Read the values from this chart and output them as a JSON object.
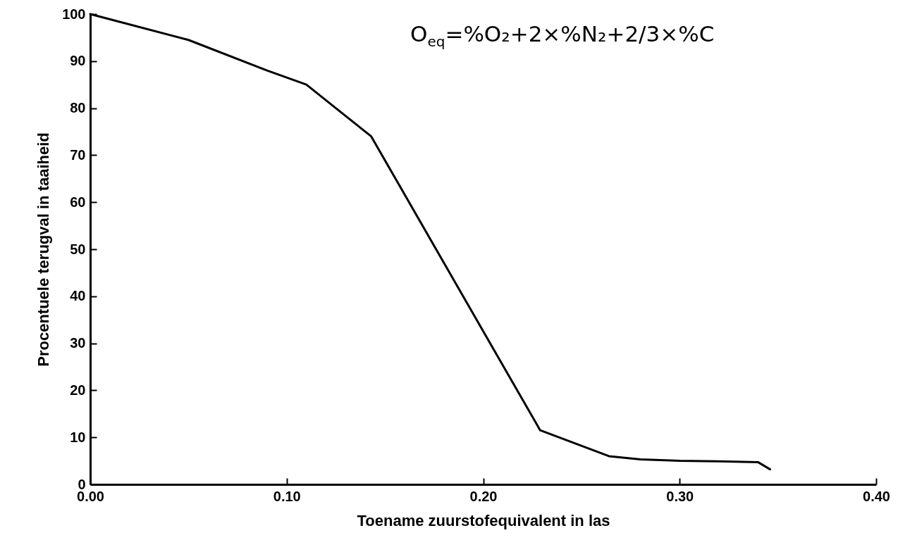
{
  "chart_data": {
    "type": "line",
    "xlabel": "Toename zuurstofequivalent in las",
    "ylabel": "Procentuele terugval in taaiheid",
    "x": [
      0,
      0.05,
      0.09,
      0.11,
      0.125,
      0.143,
      0.229,
      0.264,
      0.28,
      0.3,
      0.32,
      0.34,
      0.346
    ],
    "series": [
      {
        "color": "#000000",
        "values": [
          100,
          94.5,
          88,
          85,
          80,
          74,
          11.5,
          6,
          5.3,
          5,
          4.9,
          4.7,
          3.2
        ]
      }
    ],
    "xlim": [
      0,
      0.4
    ],
    "xticks": [
      {
        "value": 0,
        "label": "0.00"
      },
      {
        "value": 0.1,
        "label": "0.10"
      },
      {
        "value": 0.2,
        "label": "0.20"
      },
      {
        "value": 0.3,
        "label": "0.30"
      },
      {
        "value": 0.4,
        "label": "0.40"
      }
    ],
    "ylim": [
      0,
      100
    ],
    "yticks": [
      0,
      10,
      20,
      30,
      40,
      50,
      60,
      70,
      80,
      90,
      100
    ],
    "annotations": [
      "O$_{eq}$=%O₂+2×%N₂+2/3×%C"
    ],
    "grid": false,
    "marker": "none",
    "line_style": "solid"
  }
}
